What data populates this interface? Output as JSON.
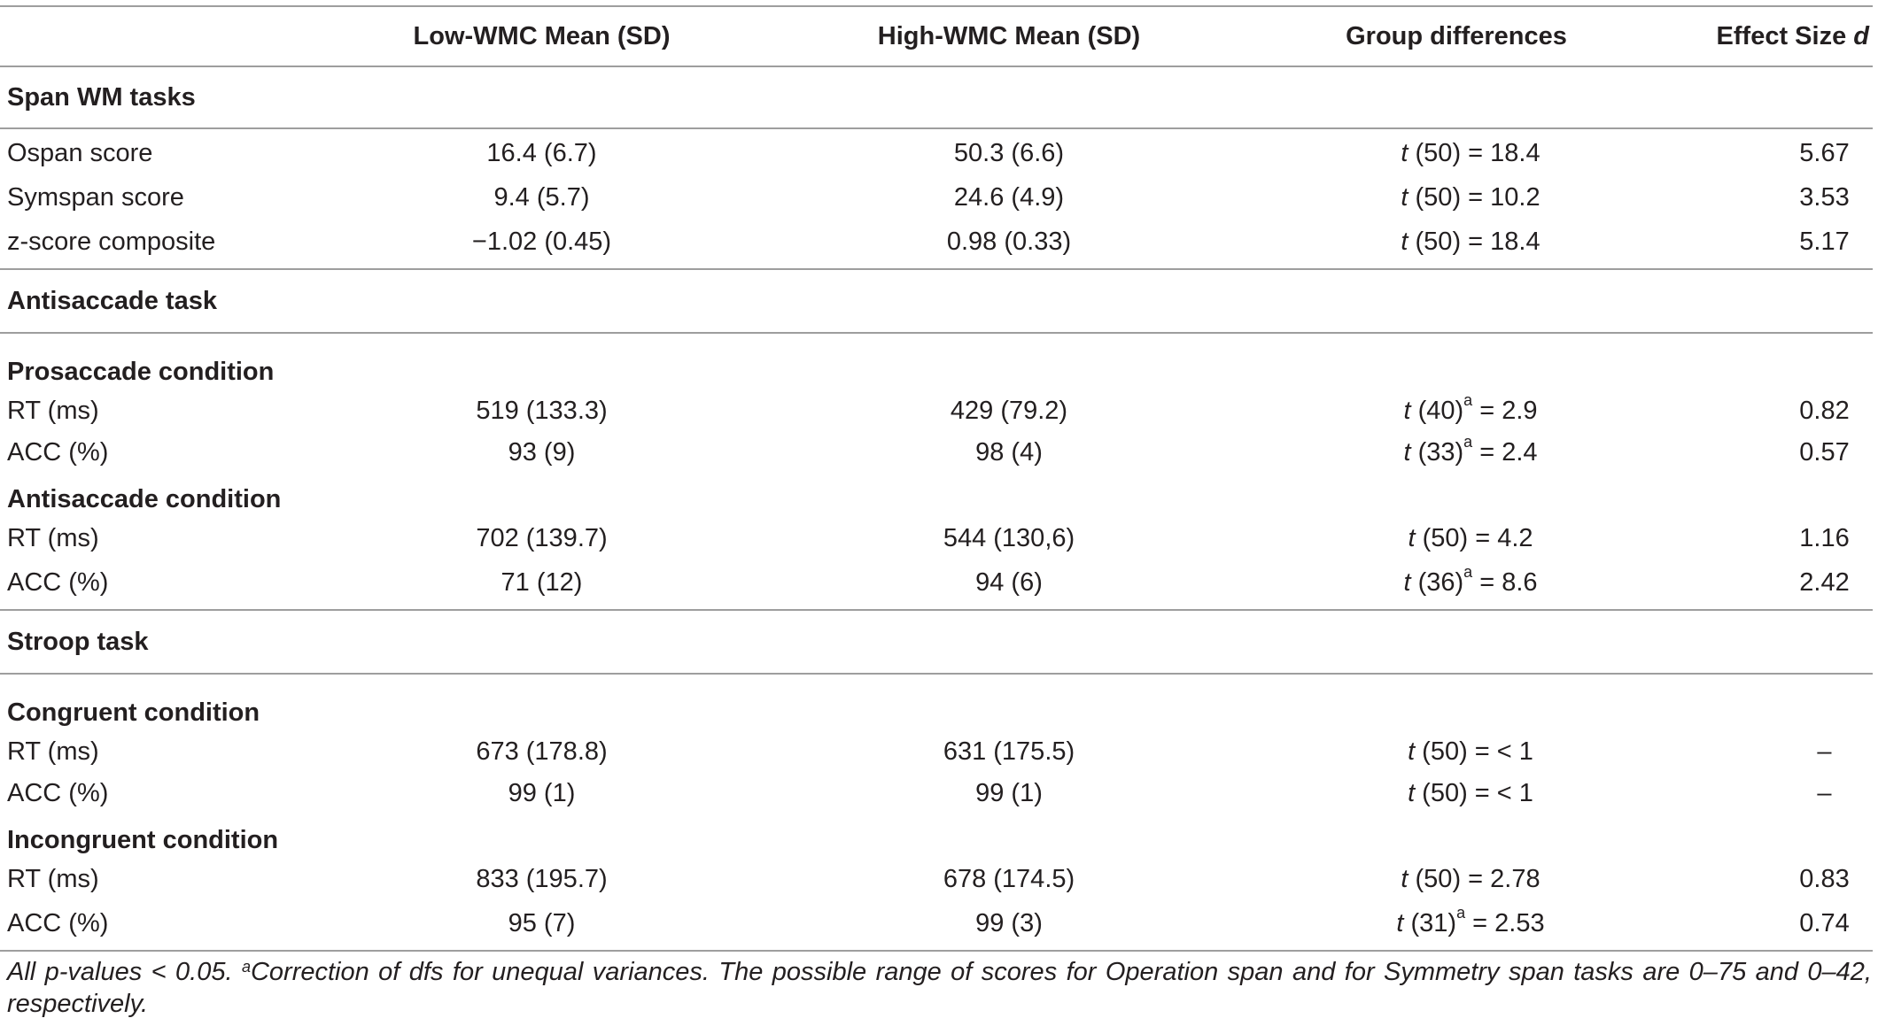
{
  "header": {
    "col1": "",
    "col2": "Low-WMC Mean (SD)",
    "col3": "High-WMC Mean (SD)",
    "col4": "Group differences",
    "col5": "Effect Size",
    "col5_italic": "d"
  },
  "sections": {
    "span": {
      "title": "Span WM tasks",
      "rows": [
        {
          "label": "Ospan score",
          "low": "16.4 (6.7)",
          "high": "50.3 (6.6)",
          "t": "t",
          "df": " (50) = 18.4",
          "d": "5.67"
        },
        {
          "label": "Symspan score",
          "low": "9.4 (5.7)",
          "high": "24.6 (4.9)",
          "t": "t",
          "df": " (50) = 10.2",
          "d": "3.53"
        },
        {
          "label": "z-score composite",
          "low": "−1.02 (0.45)",
          "high": "0.98 (0.33)",
          "t": "t",
          "df": " (50) = 18.4",
          "d": "5.17"
        }
      ]
    },
    "anti": {
      "title": "Antisaccade task",
      "pro": {
        "title": "Prosaccade condition",
        "rows": [
          {
            "label": "RT (ms)",
            "low": "519 (133.3)",
            "high": "429 (79.2)",
            "t": "t",
            "df": " (40)",
            "sup": "a",
            "rest": " = 2.9",
            "d": "0.82"
          },
          {
            "label": "ACC (%)",
            "low": "93 (9)",
            "high": "98 (4)",
            "t": "t",
            "df": " (33)",
            "sup": "a",
            "rest": " = 2.4",
            "d": "0.57"
          }
        ]
      },
      "anti": {
        "title": "Antisaccade condition",
        "rows": [
          {
            "label": "RT (ms)",
            "low": "702 (139.7)",
            "high": "544 (130,6)",
            "t": "t",
            "df": " (50) = 4.2",
            "d": "1.16"
          },
          {
            "label": "ACC (%)",
            "low": "71 (12)",
            "high": "94 (6)",
            "t": "t",
            "df": " (36)",
            "sup": "a",
            "rest": " = 8.6",
            "d": "2.42"
          }
        ]
      }
    },
    "stroop": {
      "title": "Stroop task",
      "cong": {
        "title": "Congruent condition",
        "rows": [
          {
            "label": "RT (ms)",
            "low": "673 (178.8)",
            "high": "631 (175.5)",
            "t": "t",
            "df": " (50) = < 1",
            "d": "–"
          },
          {
            "label": "ACC (%)",
            "low": "99 (1)",
            "high": "99 (1)",
            "t": "t",
            "df": " (50) = < 1",
            "d": "–"
          }
        ]
      },
      "incong": {
        "title": "Incongruent condition",
        "rows": [
          {
            "label": "RT (ms)",
            "low": "833 (195.7)",
            "high": "678 (174.5)",
            "t": "t",
            "df": " (50) = 2.78",
            "d": "0.83"
          },
          {
            "label": "ACC (%)",
            "low": "95 (7)",
            "high": "99 (3)",
            "t": "t",
            "df": " (31)",
            "sup": "a",
            "rest": " = 2.53",
            "d": "0.74"
          }
        ]
      }
    }
  },
  "footnote": {
    "part1": "All p-values < 0.05. ",
    "sup": "a",
    "part2": "Correction of dfs for unequal variances. The possible range of scores for Operation span and for Symmetry span tasks are 0–75 and 0–42, respectively."
  }
}
